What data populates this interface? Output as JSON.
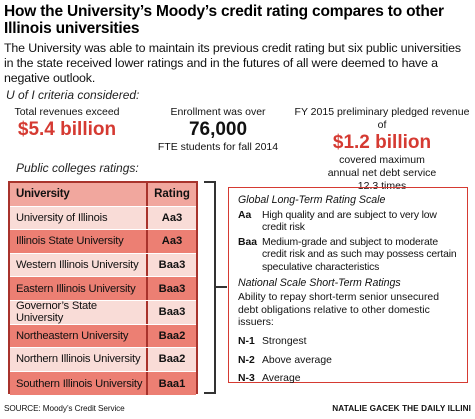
{
  "title": "How the University’s Moody’s credit rating compares to other Illinois universities",
  "dek": "The University was able to maintain its previous credit rating but six public universities in the state received lower ratings and in the futures of all were deemed to have a negative outlook.",
  "criteria_label": "U of I criteria considered:",
  "stats": [
    {
      "top": "Total revenues exceed",
      "big": "$5.4 billion",
      "bottom": ""
    },
    {
      "top": "Enrollment was over",
      "big": "76,000",
      "bottom": "FTE students for fall 2014"
    },
    {
      "top": "FY 2015 preliminary pledged revenue of",
      "big": "$1.2 billion",
      "bottom": "covered maximum annual net debt service 12.3 times"
    }
  ],
  "colleges_label": "Public colleges ratings:",
  "table": {
    "header": {
      "university": "University",
      "rating": "Rating"
    },
    "rows": [
      {
        "university": "University of Illinois",
        "rating": "Aa3"
      },
      {
        "university": "Illinois State University",
        "rating": "Aa3"
      },
      {
        "university": "Western Illinois University",
        "rating": "Baa3"
      },
      {
        "university": "Eastern Illinois University",
        "rating": "Baa3"
      },
      {
        "university": "Governor’s State University",
        "rating": "Baa3"
      },
      {
        "university": "Northeastern University",
        "rating": "Baa2"
      },
      {
        "university": "Northern Illinois University",
        "rating": "Baa2"
      },
      {
        "university": "Southern Illinois University",
        "rating": "Baa1"
      }
    ]
  },
  "scale": {
    "long_term_heading": "Global Long-Term Rating Scale",
    "long_term": [
      {
        "code": "Aa",
        "desc": "High quality and are subject to very low credit risk"
      },
      {
        "code": "Baa",
        "desc": "Medium-grade and subject to moderate credit risk and as such may possess certain speculative characteristics"
      }
    ],
    "short_term_heading": "National Scale Short-Term Ratings",
    "short_term_intro": "Ability to repay short-term senior unsecured debt obligations relative to other domestic issuers:",
    "short_term": [
      {
        "code": "N-1",
        "desc": "Strongest"
      },
      {
        "code": "N-2",
        "desc": "Above average"
      },
      {
        "code": "N-3",
        "desc": "Average"
      }
    ]
  },
  "footer": {
    "source": "SOURCE: Moody’s Credit Service",
    "credit": "NATALIE GACEK THE DAILY ILLINI"
  },
  "colors": {
    "accent": "#d53a32",
    "header_row": "#f1a79e",
    "pink_row": "#f9dcd7",
    "red_row": "#ec7f73",
    "table_border": "#a8332c"
  }
}
